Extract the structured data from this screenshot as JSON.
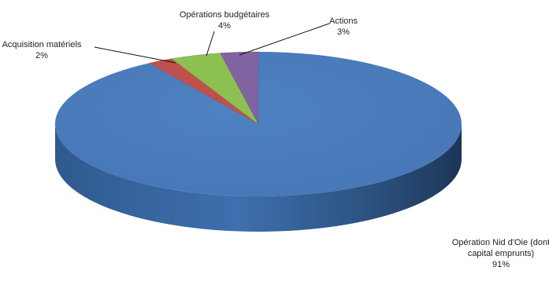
{
  "chart_data": {
    "type": "pie",
    "style": "3d",
    "title": "",
    "slices": [
      {
        "name": "Opération Nid d'Oie (dont capital emprunts)",
        "value": 91,
        "value_label": "91%",
        "label_lines": [
          "Opération Nid d'Oie (dont",
          "capital emprunts)",
          "91%"
        ],
        "color": "#4a7ebf"
      },
      {
        "name": "Acquisition matériels",
        "value": 2,
        "value_label": "2%",
        "label_lines": [
          "Acquisition matériels",
          "2%"
        ],
        "color": "#c0504d"
      },
      {
        "name": "Opérations budgétaires",
        "value": 4,
        "value_label": "4%",
        "label_lines": [
          "Opérations budgétaires",
          "4%"
        ],
        "color": "#8cc152"
      },
      {
        "name": "Actions",
        "value": 3,
        "value_label": "3%",
        "label_lines": [
          "Actions",
          "3%"
        ],
        "color": "#8064a2"
      }
    ],
    "legend": "none"
  }
}
